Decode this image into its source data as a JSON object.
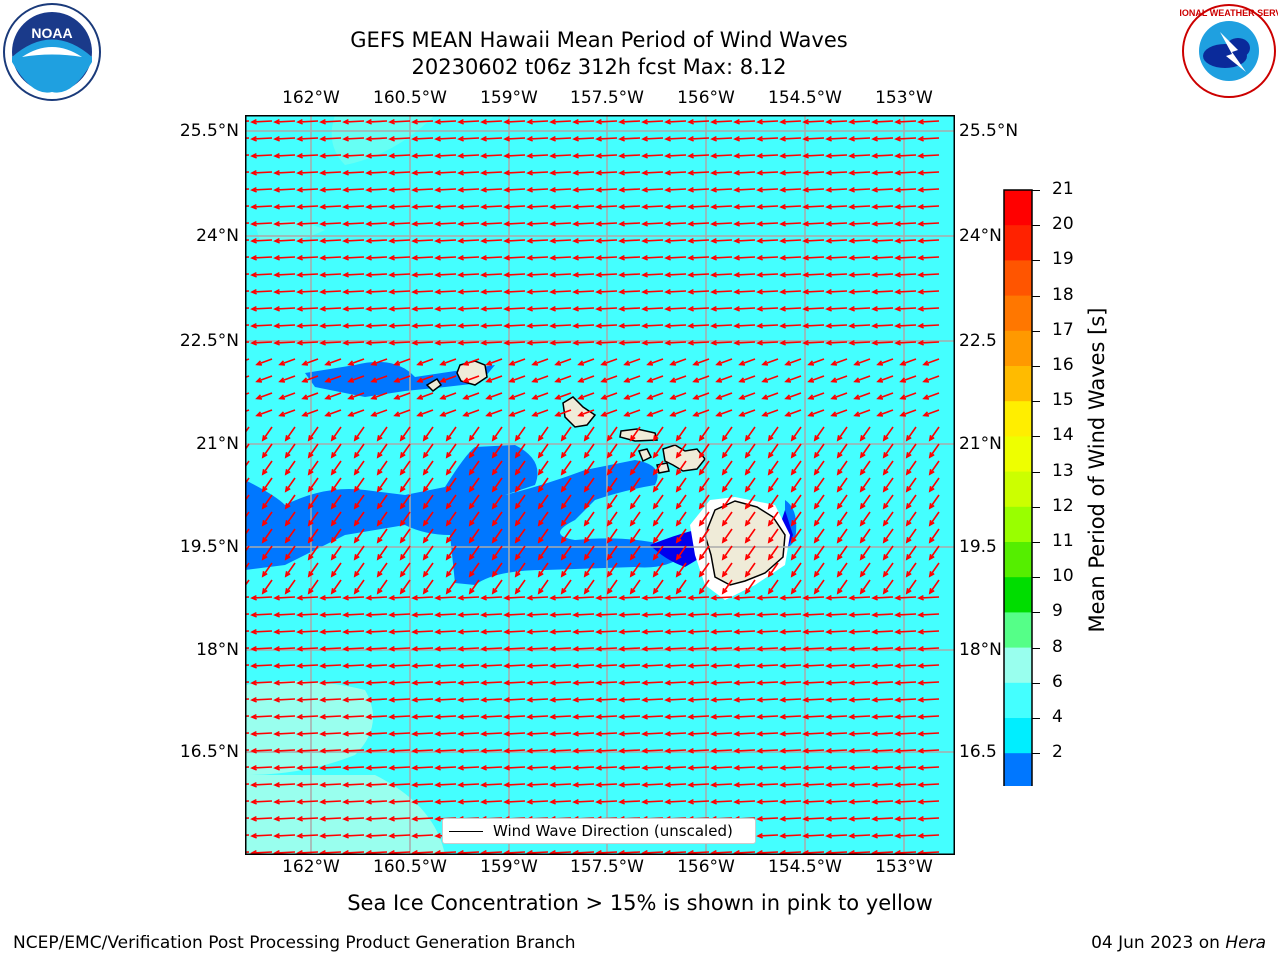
{
  "title_line1": "GEFS MEAN Hawaii Mean Period of Wind Waves",
  "title_line2": "20230602 t06z 312h fcst   Max: 8.12",
  "lon_labels": [
    "162°W",
    "160.5°W",
    "159°W",
    "157.5°W",
    "156°W",
    "154.5°W",
    "153°W"
  ],
  "lat_labels_left": [
    "25.5°N",
    "24°N",
    "22.5°N",
    "21°N",
    "19.5°N",
    "18°N",
    "16.5°N"
  ],
  "lat_labels_right": [
    "25.5°N",
    "24°N",
    "22.5",
    "21°N",
    "19.5",
    "18°N",
    "16.5"
  ],
  "legend_label": "Wind Wave Direction (unscaled)",
  "colorbar": {
    "label": "Mean Period of Wind Waves [s]",
    "ticks": [
      "21",
      "20",
      "19",
      "18",
      "17",
      "16",
      "15",
      "14",
      "13",
      "12",
      "11",
      "10",
      "9",
      "8",
      "6",
      "4",
      "2"
    ],
    "colors": [
      "#ff0000",
      "#ff2200",
      "#ff5500",
      "#ff7700",
      "#ff9900",
      "#ffbb00",
      "#ffee00",
      "#eeff00",
      "#ccff00",
      "#99ff00",
      "#55ee00",
      "#00dd00",
      "#55ff88",
      "#99ffee",
      "#44ffff",
      "#00eeff",
      "#0077ff"
    ],
    "under_color": "#0000ee"
  },
  "colors": {
    "ocean_main": "#44ffff",
    "ocean_light": "#99ffee",
    "ocean_dark": "#0077ff",
    "ocean_darkest": "#0000ee",
    "land": "#efebd8",
    "arrow": "#ff0000"
  },
  "sea_ice_note": "Sea Ice Concentration > 15% is shown in pink to yellow",
  "footer_left": "NCEP/EMC/Verification Post Processing Product Generation Branch",
  "footer_right_date": "04 Jun 2023 on ",
  "footer_right_host": "Hera",
  "logo_left_text": "NOAA",
  "logo_right_text": "NATIONAL WEATHER SERVICE"
}
